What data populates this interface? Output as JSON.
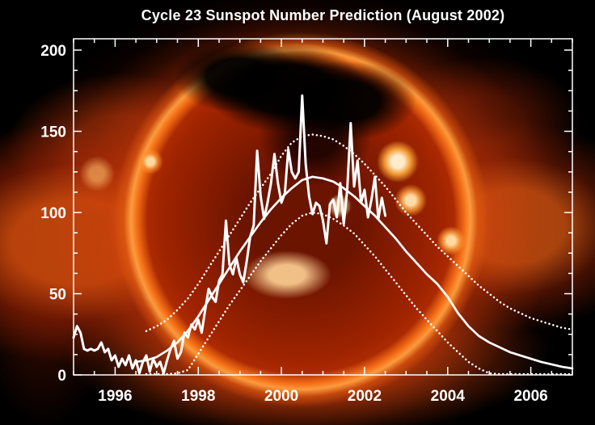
{
  "title": "Cycle 23 Sunspot Number Prediction (August 2002)",
  "background_colors": {
    "space": "#000000",
    "sun_core": "#8a1d00",
    "sun_limb": "#ff9a40",
    "corona_glow": "#e0560e",
    "active_region": "#ffeccd"
  },
  "chart_data": {
    "type": "line",
    "title": "Cycle 23 Sunspot Number Prediction (August 2002)",
    "xlabel": "",
    "ylabel": "",
    "xlim": [
      1995,
      2007
    ],
    "ylim": [
      0,
      200
    ],
    "x_ticks": [
      1996,
      1998,
      2000,
      2002,
      2004,
      2006
    ],
    "y_ticks": [
      0,
      50,
      100,
      150,
      200
    ],
    "x_minor_step": 0.5,
    "y_minor_step": 12.5,
    "grid": false,
    "legend": "none",
    "line_color": "#ffffff",
    "series": [
      {
        "name": "observed-monthly-sunspot-number",
        "style": "solid",
        "width": 3,
        "x_start": 1995.0,
        "x_step": 0.08333,
        "y": [
          23,
          30,
          26,
          16,
          15,
          16,
          15,
          16,
          20,
          14,
          16,
          9,
          12,
          5,
          10,
          6,
          12,
          4,
          9,
          1,
          8,
          12,
          2,
          10,
          5,
          8,
          1,
          9,
          16,
          21,
          10,
          14,
          26,
          23,
          31,
          28,
          34,
          26,
          40,
          53,
          48,
          45,
          58,
          62,
          95,
          68,
          62,
          72,
          62,
          57,
          70,
          85,
          92,
          138,
          110,
          96,
          106,
          118,
          136,
          118,
          106,
          112,
          139,
          125,
          121,
          125,
          172,
          130,
          110,
          99,
          106,
          104,
          95,
          81,
          105,
          108,
          97,
          118,
          93,
          114,
          155,
          116,
          132,
          106,
          114,
          97,
          108,
          122,
          96,
          109,
          98
        ]
      },
      {
        "name": "predicted-sunspot-number",
        "style": "solid",
        "width": 2.7,
        "x_start": 1996.5,
        "x_step": 0.25,
        "y": [
          8,
          9,
          11,
          15,
          20,
          27,
          36,
          46,
          56,
          66,
          76,
          85,
          94,
          102,
          109,
          115,
          120,
          122,
          121,
          119,
          115,
          110,
          104,
          98,
          91,
          84,
          76,
          69,
          62,
          56,
          48,
          38,
          30,
          24,
          20,
          17,
          14,
          12,
          10,
          8,
          6.5,
          5,
          4
        ]
      },
      {
        "name": "prediction-upper-uncertainty",
        "style": "dotted",
        "width": 2.5,
        "x_start": 1996.75,
        "x_step": 0.25,
        "y": [
          27,
          30,
          34,
          40,
          47,
          56,
          66,
          76,
          86,
          96,
          106,
          115,
          124,
          135,
          143,
          147,
          148,
          147,
          145,
          141,
          136,
          130,
          123,
          116,
          108,
          100,
          93,
          86,
          79,
          73,
          67,
          61,
          55,
          50,
          45,
          41,
          38,
          35,
          33,
          31,
          29,
          28
        ]
      },
      {
        "name": "prediction-lower-uncertainty",
        "style": "dotted",
        "width": 2.5,
        "x_start": 1996.75,
        "x_step": 0.25,
        "y": [
          0.5,
          0.5,
          0.5,
          1,
          3,
          13,
          23,
          33,
          43,
          52,
          61,
          70,
          78,
          86,
          93,
          98,
          100,
          99,
          96,
          92,
          87,
          80,
          73,
          65,
          57,
          49,
          41,
          34,
          27,
          20,
          14,
          8,
          4,
          1,
          0.5,
          0.5,
          0.5,
          0.5,
          0.5,
          0.5,
          0.5,
          0.5
        ]
      }
    ]
  }
}
